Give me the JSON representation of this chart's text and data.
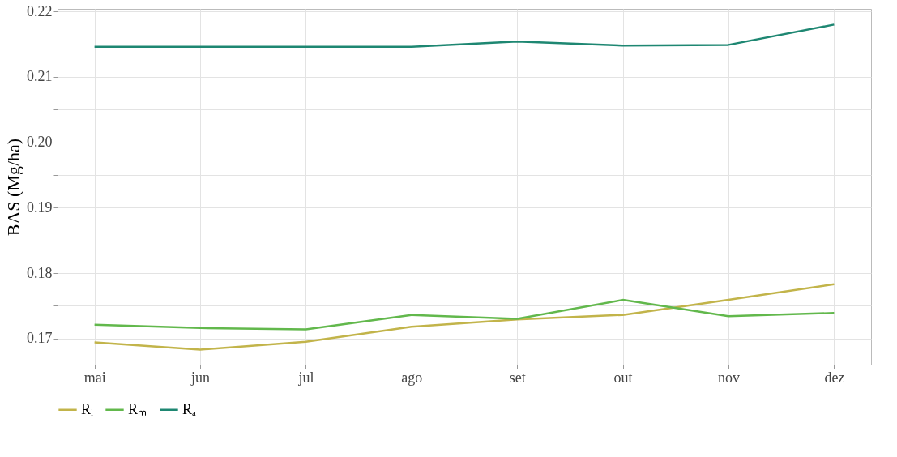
{
  "chart_data": {
    "type": "line",
    "ylabel": "BAS (Mg/ha)",
    "categories": [
      "mai",
      "jun",
      "jul",
      "ago",
      "set",
      "out",
      "nov",
      "dez"
    ],
    "series": [
      {
        "name": "Rᵢ",
        "color": "#c2b44a",
        "values": [
          0.1694,
          0.1683,
          0.1695,
          0.1718,
          0.1729,
          0.1736,
          0.1759,
          0.1783
        ]
      },
      {
        "name": "Rₘ",
        "color": "#62b84c",
        "values": [
          0.1721,
          0.1716,
          0.1714,
          0.1736,
          0.173,
          0.1759,
          0.1734,
          0.1739
        ]
      },
      {
        "name": "Rₐ",
        "color": "#1e8772",
        "values": [
          0.2146,
          0.2146,
          0.2146,
          0.2146,
          0.2154,
          0.2148,
          0.2149,
          0.218
        ]
      }
    ],
    "ylim": [
      0.166,
      0.2204
    ],
    "yticks": [
      0.17,
      {
        "value": 0.175,
        "label": null
      },
      0.18,
      {
        "value": 0.185,
        "label": null
      },
      0.19,
      {
        "value": 0.195,
        "label": null
      },
      {
        "value": 0.2,
        "label": "0.20"
      },
      {
        "value": 0.205,
        "label": null
      },
      0.21,
      {
        "value": 0.215,
        "label": null
      },
      0.22
    ],
    "grid": true,
    "legend": "bottom",
    "marker": "none",
    "line_style": "solid"
  }
}
